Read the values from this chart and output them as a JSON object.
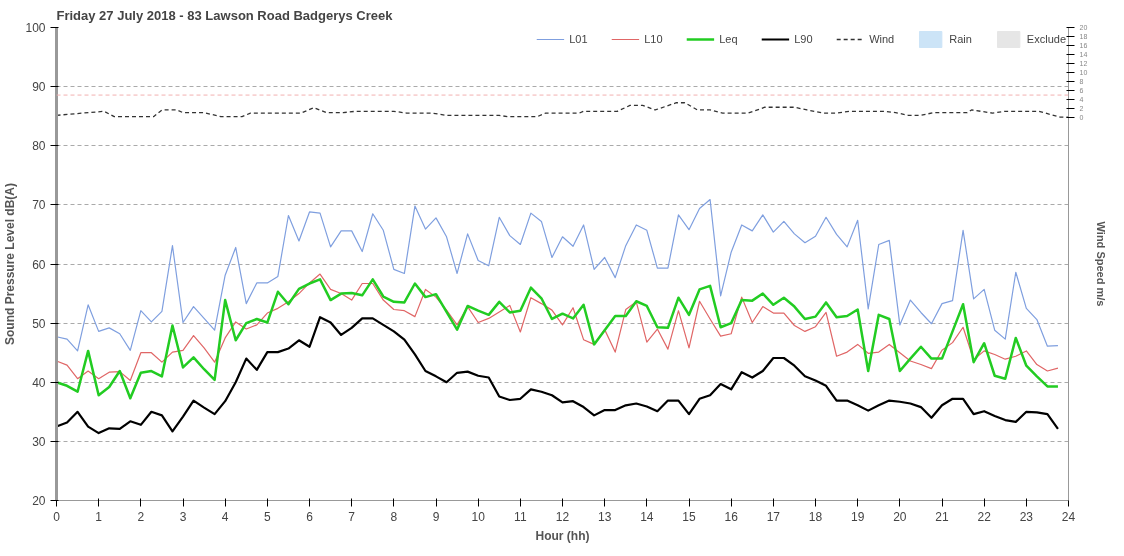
{
  "chart_data": {
    "type": "line",
    "title": "Friday 27 July 2018 - 83 Lawson Road Badgerys Creek",
    "xlabel": "Hour (hh)",
    "ylabel": "Sound Pressure Level dB(A)",
    "y2label": "Wind Speed m/s",
    "x": [
      0,
      0.25,
      0.5,
      0.75,
      1,
      1.25,
      1.5,
      1.75,
      2,
      2.25,
      2.5,
      2.75,
      3,
      3.25,
      3.5,
      3.75,
      4,
      4.25,
      4.5,
      4.75,
      5,
      5.25,
      5.5,
      5.75,
      6,
      6.25,
      6.5,
      6.75,
      7,
      7.25,
      7.5,
      7.75,
      8,
      8.25,
      8.5,
      8.75,
      9,
      9.25,
      9.5,
      9.75,
      10,
      10.25,
      10.5,
      10.75,
      11,
      11.25,
      11.5,
      11.75,
      12,
      12.25,
      12.5,
      12.75,
      13,
      13.25,
      13.5,
      13.75,
      14,
      14.25,
      14.5,
      14.75,
      15,
      15.25,
      15.5,
      15.75,
      16,
      16.25,
      16.5,
      16.75,
      17,
      17.25,
      17.5,
      17.75,
      18,
      18.25,
      18.5,
      18.75,
      19,
      19.25,
      19.5,
      19.75,
      20,
      20.25,
      20.5,
      20.75,
      21,
      21.25,
      21.5,
      21.75,
      22,
      22.25,
      22.5,
      22.75,
      23,
      23.25,
      23.5,
      23.75
    ],
    "series": [
      {
        "name": "L01",
        "color": "#7f9fdf",
        "values": [
          47.7,
          47.3,
          45.3,
          53.1,
          48.6,
          49.2,
          48.2,
          45.4,
          52.1,
          50.2,
          52.0,
          63.1,
          50.1,
          52.8,
          50.8,
          48.8,
          58.1,
          62.8,
          53.3,
          56.8,
          56.8,
          57.9,
          68.2,
          63.9,
          68.8,
          68.6,
          62.9,
          65.6,
          65.6,
          62.1,
          68.5,
          65.7,
          59.1,
          58.4,
          69.8,
          65.9,
          67.8,
          64.6,
          58.4,
          65.1,
          60.6,
          59.7,
          67.9,
          64.8,
          63.3,
          68.6,
          67.2,
          61.1,
          64.6,
          63.0,
          66.6,
          59.1,
          61.1,
          57.7,
          63.1,
          66.6,
          65.7,
          59.3,
          59.3,
          68.3,
          65.8,
          69.4,
          70.9,
          54.6,
          62.0,
          66.6,
          65.6,
          68.3,
          65.4,
          67.2,
          65.1,
          63.6,
          64.7,
          67.9,
          65.0,
          62.9,
          67.4,
          52.4,
          63.3,
          64.0,
          49.7,
          53.9,
          51.8,
          49.9,
          53.3,
          53.8,
          65.7,
          54.1,
          55.7,
          48.8,
          47.3,
          58.6,
          52.5,
          50.6,
          46.1,
          46.2
        ]
      },
      {
        "name": "L10",
        "color": "#e06666",
        "values": [
          43.6,
          42.9,
          40.6,
          41.9,
          40.6,
          41.7,
          41.8,
          40.3,
          45.0,
          45.0,
          43.4,
          45.1,
          45.4,
          47.9,
          45.8,
          43.4,
          47.5,
          50.2,
          49.0,
          49.7,
          51.7,
          52.5,
          53.6,
          55.0,
          56.8,
          58.3,
          55.7,
          55.0,
          53.9,
          56.7,
          56.7,
          53.9,
          52.3,
          52.1,
          51.1,
          55.7,
          54.4,
          52.2,
          49.7,
          52.8,
          50.1,
          50.8,
          51.9,
          53.0,
          48.5,
          54.3,
          53.3,
          52.2,
          49.7,
          52.6,
          47.2,
          46.4,
          48.9,
          45.1,
          52.3,
          53.6,
          46.8,
          49.0,
          45.6,
          52.1,
          45.8,
          53.7,
          50.7,
          47.8,
          48.2,
          54.4,
          50.1,
          52.8,
          51.7,
          51.7,
          49.6,
          48.6,
          49.4,
          51.8,
          44.4,
          45.1,
          46.4,
          44.9,
          45.1,
          46.4,
          45.0,
          43.6,
          43.0,
          42.3,
          45.4,
          46.7,
          49.3,
          43.8,
          45.3,
          44.7,
          43.9,
          44.4,
          45.3,
          43.0,
          41.9,
          42.4
        ]
      },
      {
        "name": "Leq",
        "color": "#22cc22",
        "values": [
          40.0,
          39.4,
          38.4,
          45.3,
          37.8,
          39.2,
          41.9,
          37.3,
          41.6,
          41.9,
          41.0,
          49.6,
          42.5,
          44.2,
          42.2,
          40.4,
          53.9,
          47.1,
          50.0,
          50.7,
          50.1,
          55.3,
          53.2,
          55.8,
          56.7,
          57.4,
          53.9,
          55.0,
          55.1,
          54.7,
          57.4,
          54.5,
          53.6,
          53.5,
          56.7,
          54.4,
          54.9,
          51.9,
          48.9,
          52.9,
          52.1,
          51.4,
          53.6,
          51.8,
          52.1,
          56.0,
          54.2,
          50.7,
          51.6,
          50.8,
          53.1,
          46.4,
          48.8,
          51.2,
          51.2,
          53.7,
          52.9,
          49.3,
          49.2,
          54.3,
          51.4,
          55.7,
          56.3,
          49.3,
          50.0,
          53.9,
          53.8,
          55.0,
          53.1,
          54.3,
          52.8,
          50.7,
          51.1,
          53.5,
          51.0,
          51.2,
          52.3,
          41.9,
          51.4,
          50.7,
          41.9,
          44.0,
          46.0,
          44.0,
          44.0,
          48.6,
          53.2,
          43.4,
          46.6,
          41.1,
          40.6,
          47.5,
          42.8,
          41.0,
          39.3,
          39.3
        ]
      },
      {
        "name": "L90",
        "color": "#000000",
        "values": [
          32.5,
          33.2,
          35.0,
          32.5,
          31.4,
          32.2,
          32.1,
          33.4,
          32.8,
          35.0,
          34.4,
          31.7,
          34.2,
          36.9,
          35.7,
          34.6,
          36.8,
          40.0,
          44.0,
          42.1,
          45.1,
          45.1,
          45.7,
          47.1,
          46.0,
          51.0,
          50.1,
          48.0,
          49.2,
          50.8,
          50.8,
          49.7,
          48.6,
          47.2,
          44.7,
          41.9,
          41.0,
          40.0,
          41.6,
          41.8,
          41.1,
          40.8,
          37.6,
          37.0,
          37.2,
          38.8,
          38.4,
          37.8,
          36.6,
          36.8,
          35.8,
          34.4,
          35.3,
          35.3,
          36.1,
          36.4,
          35.9,
          35.1,
          36.9,
          36.9,
          34.6,
          37.2,
          37.8,
          39.7,
          38.8,
          41.7,
          40.8,
          41.9,
          44.1,
          44.1,
          42.8,
          41.0,
          40.3,
          39.4,
          36.9,
          36.9,
          36.1,
          35.2,
          36.1,
          36.9,
          36.7,
          36.4,
          35.8,
          34.0,
          36.1,
          37.2,
          37.2,
          34.6,
          35.1,
          34.3,
          33.6,
          33.3,
          35.0,
          34.9,
          34.6,
          32.1
        ]
      },
      {
        "name": "Wind",
        "type": "line",
        "axis": "y2",
        "line_style": "dashed",
        "color": "#333333",
        "x": [
          0,
          1.13,
          1.37,
          2.3,
          2.5,
          2.85,
          3.0,
          3.5,
          3.9,
          4.4,
          4.6,
          5.8,
          6.1,
          6.4,
          6.8,
          7.1,
          8.0,
          8.3,
          8.9,
          9.25,
          10.5,
          10.7,
          11.4,
          11.6,
          12.4,
          12.5,
          13.3,
          13.6,
          13.9,
          14.2,
          14.7,
          14.9,
          15.2,
          15.5,
          15.8,
          16.4,
          16.8,
          17.5,
          17.8,
          18.2,
          18.5,
          18.8,
          19.6,
          19.9,
          20.2,
          20.5,
          20.8,
          21.6,
          21.7,
          22.2,
          22.5,
          23.3,
          23.8,
          24
        ],
        "values": [
          0.5,
          1.4,
          0.2,
          0.2,
          1.7,
          1.7,
          1.1,
          1.1,
          0.2,
          0.2,
          1.0,
          1.0,
          2.2,
          1.1,
          1.1,
          1.4,
          1.4,
          1.0,
          1.0,
          0.5,
          0.5,
          0.2,
          0.2,
          1.0,
          1.0,
          1.4,
          1.4,
          2.7,
          2.7,
          1.7,
          3.3,
          3.3,
          1.7,
          1.7,
          1.0,
          1.0,
          2.3,
          2.3,
          1.7,
          1.0,
          1.0,
          1.4,
          1.4,
          1.1,
          0.5,
          0.5,
          1.1,
          1.1,
          1.7,
          1.0,
          1.4,
          1.4,
          0.1,
          0.1
        ]
      },
      {
        "name": "Rain",
        "type": "bar",
        "color": "#cce4f7",
        "values": [
          null,
          null,
          null,
          null,
          null,
          null,
          null,
          null,
          null,
          null,
          null,
          null,
          null,
          null,
          null,
          null,
          null,
          null,
          null,
          null,
          null,
          null,
          null,
          null,
          null,
          null,
          null,
          null,
          null,
          null,
          null,
          null,
          null,
          null,
          null,
          null,
          null,
          null,
          null,
          null,
          null,
          null,
          null,
          null,
          null,
          null,
          null,
          null,
          null,
          null,
          null,
          null,
          null,
          null,
          null,
          null,
          null,
          null,
          null,
          null,
          null,
          null,
          null,
          null,
          null,
          null,
          null,
          null,
          null,
          null,
          null,
          null,
          null,
          null,
          null,
          null,
          null,
          null,
          null,
          null,
          null,
          null,
          null,
          null,
          null,
          null,
          null,
          null,
          null,
          null,
          null,
          null,
          null,
          null,
          null,
          null
        ]
      },
      {
        "name": "Exclude",
        "type": "bar",
        "color": "#e6e6e6",
        "values": [
          null,
          null,
          null,
          null,
          null,
          null,
          null,
          null,
          null,
          null,
          null,
          null,
          null,
          null,
          null,
          null,
          null,
          null,
          null,
          null,
          null,
          null,
          null,
          null,
          null,
          null,
          null,
          null,
          null,
          null,
          null,
          null,
          null,
          null,
          null,
          null,
          null,
          null,
          null,
          null,
          null,
          null,
          null,
          null,
          null,
          null,
          null,
          null,
          null,
          null,
          null,
          null,
          null,
          null,
          null,
          null,
          null,
          null,
          null,
          null,
          null,
          null,
          null,
          null,
          null,
          null,
          null,
          null,
          null,
          null,
          null,
          null,
          null,
          null,
          null,
          null,
          null,
          null,
          null,
          null,
          null,
          null,
          null,
          null,
          null,
          null,
          null,
          null,
          null,
          null,
          null,
          null,
          null,
          null,
          null,
          null
        ]
      }
    ],
    "xlim": [
      0,
      24
    ],
    "xticks": [
      0,
      1,
      2,
      3,
      4,
      5,
      6,
      7,
      8,
      9,
      10,
      11,
      12,
      13,
      14,
      15,
      16,
      17,
      18,
      19,
      20,
      21,
      22,
      23,
      24
    ],
    "ylim": [
      20,
      100
    ],
    "yticks": [
      20,
      30,
      40,
      50,
      60,
      70,
      80,
      90,
      100
    ],
    "y2lim": [
      -85,
      20
    ],
    "y2ticks": [
      0,
      2,
      4,
      6,
      8,
      10,
      12,
      14,
      16,
      18,
      20
    ],
    "ref_lines": [
      {
        "axis": "y2",
        "value": 5,
        "label": null,
        "color": "#f2b0b0",
        "line_style": "dashed"
      }
    ],
    "grid": "y",
    "legend": "top right"
  }
}
